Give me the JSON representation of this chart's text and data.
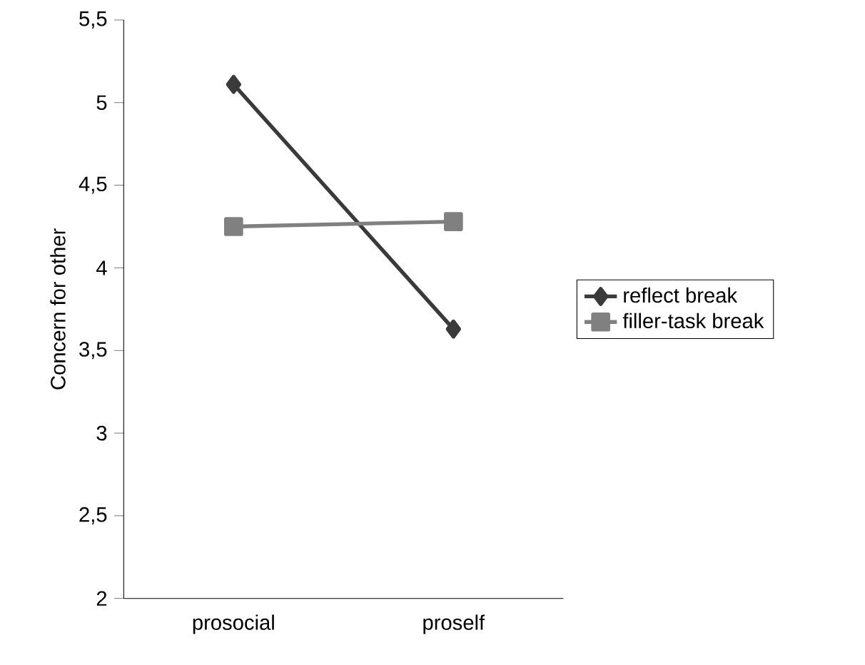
{
  "chart_data": {
    "type": "line",
    "ylabel": "Concern for other",
    "categories": [
      "prosocial",
      "proself"
    ],
    "series": [
      {
        "name": "reflect break",
        "color": "#3a3a3a",
        "marker": "diamond",
        "values": [
          5.11,
          3.63
        ]
      },
      {
        "name": "filler-task break",
        "color": "#808080",
        "marker": "square",
        "values": [
          4.25,
          4.28
        ]
      }
    ],
    "ylim": [
      2,
      5.5
    ],
    "yticks": [
      {
        "value": 2,
        "label": "2"
      },
      {
        "value": 2.5,
        "label": "2,5"
      },
      {
        "value": 3,
        "label": "3"
      },
      {
        "value": 3.5,
        "label": "3,5"
      },
      {
        "value": 4,
        "label": "4"
      },
      {
        "value": 4.5,
        "label": "4,5"
      },
      {
        "value": 5,
        "label": "5"
      },
      {
        "value": 5.5,
        "label": "5,5"
      }
    ],
    "legend": "right",
    "grid": false
  }
}
